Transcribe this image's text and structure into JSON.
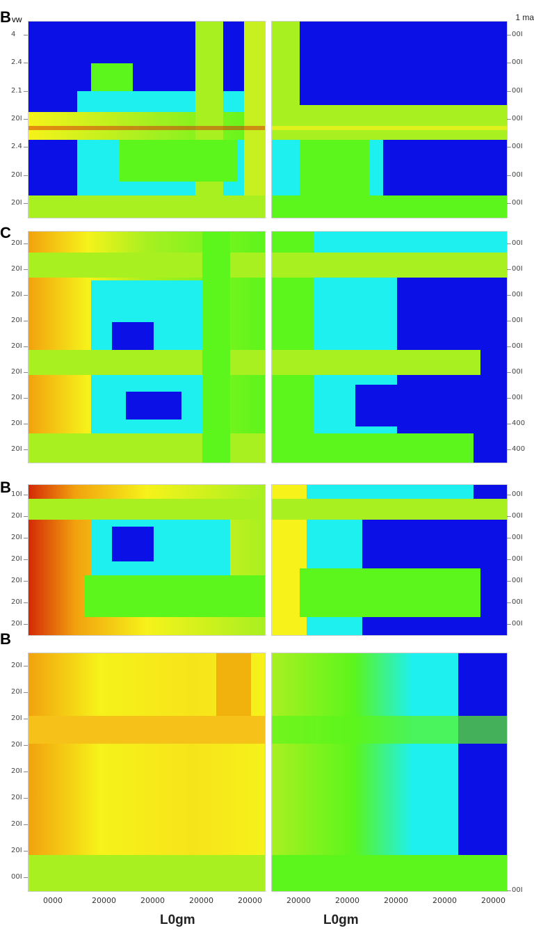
{
  "panels": [
    {
      "id": "top",
      "label": "B",
      "sublabel": "vw",
      "left_ticks": [
        "4",
        "2.4",
        "2.1",
        "20I",
        "2.4",
        "20I",
        "20I"
      ],
      "right_ticks": [
        "00I",
        "00I",
        "00I",
        "00I",
        "00I",
        "00I",
        "00I"
      ]
    },
    {
      "id": "second",
      "label": "C",
      "sublabel": "",
      "left_ticks": [
        "20I",
        "20I",
        "20I",
        "20I",
        "20I",
        "20I",
        "20I",
        "20I",
        "20I"
      ],
      "right_ticks": [
        "00I",
        "00I",
        "00I",
        "00I",
        "00I",
        "00I",
        "00I",
        "400",
        "400"
      ]
    },
    {
      "id": "third",
      "label": "B",
      "sublabel": "",
      "left_ticks": [
        "10I",
        "20I",
        "20I",
        "20I",
        "20I",
        "20I",
        "20I"
      ],
      "right_ticks": [
        "00I",
        "00I",
        "00I",
        "00I",
        "00I",
        "00I",
        "00I"
      ]
    },
    {
      "id": "fourth",
      "label": "B",
      "sublabel": "",
      "left_ticks": [
        "20I",
        "20I",
        "20I",
        "20I",
        "20I",
        "20I",
        "20I",
        "20I",
        "00I"
      ],
      "right_ticks": [
        "00I"
      ]
    }
  ],
  "top_right_label": "1 ma",
  "x_ticks": [
    "0000",
    "20000",
    "20000",
    "20000",
    "20000",
    "20000",
    "20000",
    "20000",
    "20000",
    "20000"
  ],
  "x_labels": [
    "L0gm",
    "L0gm"
  ],
  "colors": {
    "blue": "#0a10e6",
    "cyan": "#1ef0f0",
    "green": "#5cf51c",
    "lime": "#a8f020",
    "yellow": "#f6f21a",
    "orange": "#f2a20e",
    "red": "#d42a06"
  }
}
